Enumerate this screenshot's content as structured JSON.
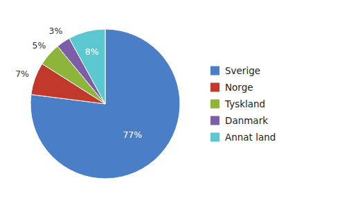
{
  "chart_data": {
    "type": "pie",
    "categories": [
      "Sverige",
      "Norge",
      "Tyskland",
      "Danmark",
      "Annat land"
    ],
    "values": [
      77,
      7,
      5,
      3,
      8
    ],
    "value_labels": [
      "77%",
      "7%",
      "5%",
      "3%",
      "8%"
    ],
    "colors": [
      "#4a7ec7",
      "#c0392b",
      "#8db53c",
      "#7b5ea7",
      "#5bc8d0"
    ],
    "data_labels": true,
    "legend": "right"
  }
}
